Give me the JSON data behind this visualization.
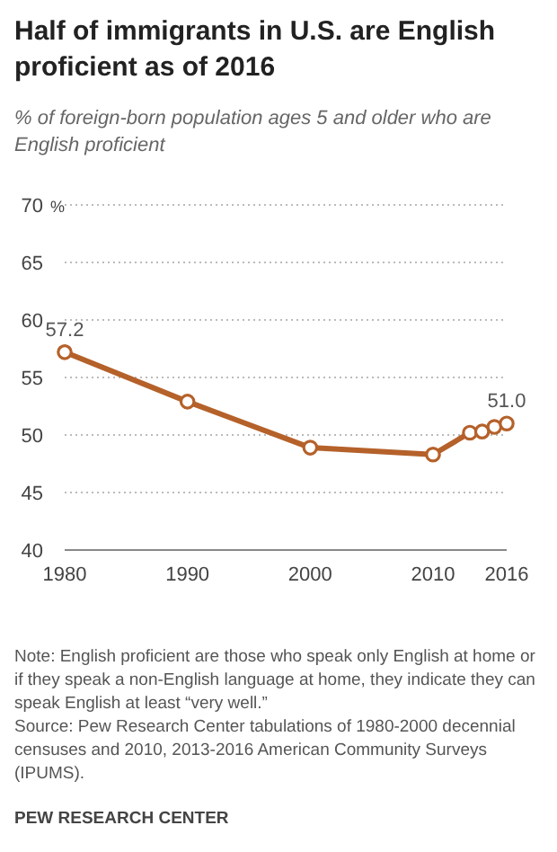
{
  "chart_data": {
    "type": "line",
    "title": "Half of immigrants in U.S. are English proficient as of 2016",
    "subtitle": "% of foreign-born population ages 5 and older who are English proficient",
    "ylabel": "%",
    "x": [
      1980,
      1990,
      2000,
      2010,
      2013,
      2014,
      2015,
      2016
    ],
    "series": [
      {
        "color": "#b5612a",
        "values": [
          57.2,
          52.9,
          48.9,
          48.3,
          50.2,
          50.3,
          50.7,
          51.0
        ],
        "value_labels": [
          "57.2",
          null,
          null,
          null,
          null,
          null,
          null,
          "51.0"
        ]
      }
    ],
    "xlim": [
      1980,
      2016
    ],
    "xticks": [
      1980,
      1990,
      2000,
      2010,
      2016
    ],
    "ylim": [
      40,
      70
    ],
    "yticks": [
      40,
      45,
      50,
      55,
      60,
      65,
      70
    ],
    "grid": "y",
    "marker": "circle",
    "annotations": [
      "Note: English proficient are those who speak only English at home or if they speak a non-English language at home, they indicate they can speak English at least “very well.”",
      "Source: Pew Research Center tabulations of 1980-2000 decennial censuses and 2010, 2013-2016 American Community Surveys (IPUMS).",
      "PEW RESEARCH CENTER"
    ]
  }
}
